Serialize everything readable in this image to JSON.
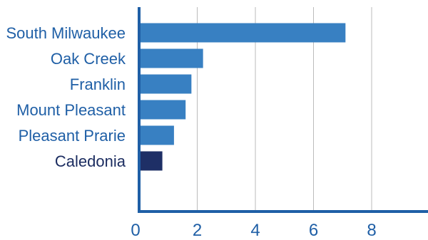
{
  "chart_data": {
    "type": "bar",
    "orientation": "horizontal",
    "categories": [
      "South Milwaukee",
      "Oak Creek",
      "Franklin",
      "Mount Pleasant",
      "Pleasant Prarie",
      "Caledonia"
    ],
    "values": [
      7.1,
      2.2,
      1.8,
      1.6,
      1.2,
      0.8
    ],
    "bar_colors": [
      "#3880c2",
      "#3880c2",
      "#3880c2",
      "#3880c2",
      "#3880c2",
      "#1e2f66"
    ],
    "label_colors": [
      "#1f5fa6",
      "#1f5fa6",
      "#1f5fa6",
      "#1f5fa6",
      "#1f5fa6",
      "#1a2b5f"
    ],
    "xticks": [
      0,
      2,
      4,
      6,
      8
    ],
    "xlim": [
      0,
      10
    ],
    "grid": "vertical",
    "axis_color": "#1f5fa6",
    "grid_color": "#bbbbbb"
  }
}
